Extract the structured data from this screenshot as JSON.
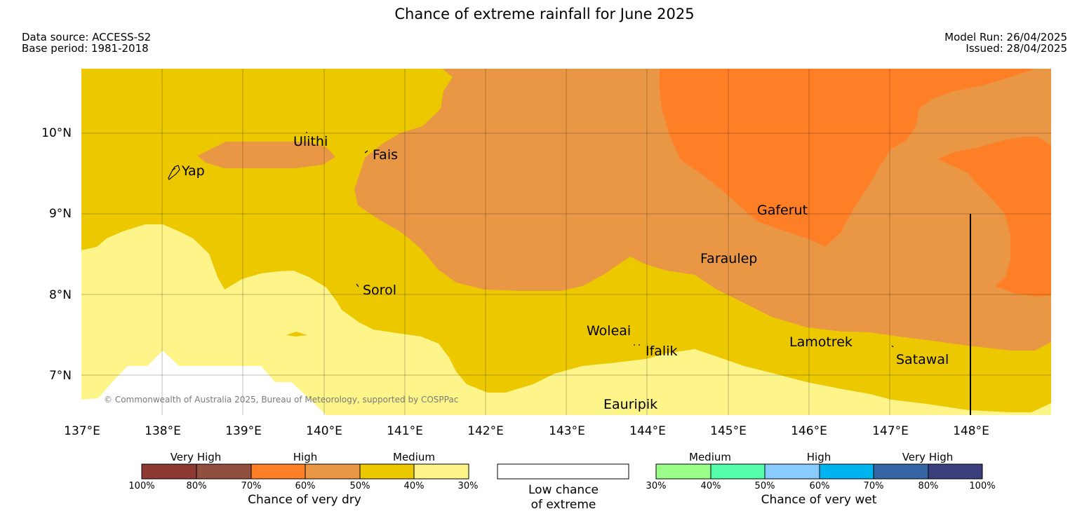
{
  "title": "Chance of extreme rainfall for June 2025",
  "meta": {
    "data_source": "Data source: ACCESS-S2",
    "base_period": "Base period: 1981-2018",
    "model_run": "Model Run: 26/04/2025",
    "issued": "Issued: 28/04/2025"
  },
  "copyright": "© Commonwealth of Australia 2025, Bureau of Meteorology, supported by COSPPac",
  "map": {
    "lon_range": [
      137,
      149
    ],
    "lat_range": [
      6.5,
      10.8
    ],
    "lon_ticks": [
      "137°E",
      "138°E",
      "139°E",
      "140°E",
      "141°E",
      "142°E",
      "143°E",
      "144°E",
      "145°E",
      "146°E",
      "147°E",
      "148°E"
    ],
    "lat_ticks": [
      "7°N",
      "8°N",
      "9°N",
      "10°N"
    ],
    "places": [
      "Ulithi",
      "Fais",
      "Yap",
      "Gaferut",
      "Faraulep",
      "Sorol",
      "Woleai",
      "Ifalik",
      "Lamotrek",
      "Satawal",
      "Eauripik"
    ]
  },
  "legend": {
    "dry": {
      "categories": [
        "Very High",
        "High",
        "Medium"
      ],
      "colors": [
        "#8c3a33",
        "#8f5040",
        "#ff7f27",
        "#e99744",
        "#ecc800",
        "#fdf48a"
      ],
      "ticks": [
        "100%",
        "80%",
        "70%",
        "60%",
        "50%",
        "40%",
        "30%"
      ],
      "caption": "Chance of very dry"
    },
    "low": {
      "color": "#ffffff",
      "caption_line1": "Low chance",
      "caption_line2": "of extreme"
    },
    "wet": {
      "categories": [
        "Medium",
        "High",
        "Very High"
      ],
      "colors": [
        "#99ff88",
        "#55ffaa",
        "#88ccff",
        "#00b4f0",
        "#3366a2",
        "#3b3f7e"
      ],
      "ticks": [
        "30%",
        "40%",
        "50%",
        "60%",
        "70%",
        "80%",
        "100%"
      ],
      "caption": "Chance of very wet"
    }
  }
}
